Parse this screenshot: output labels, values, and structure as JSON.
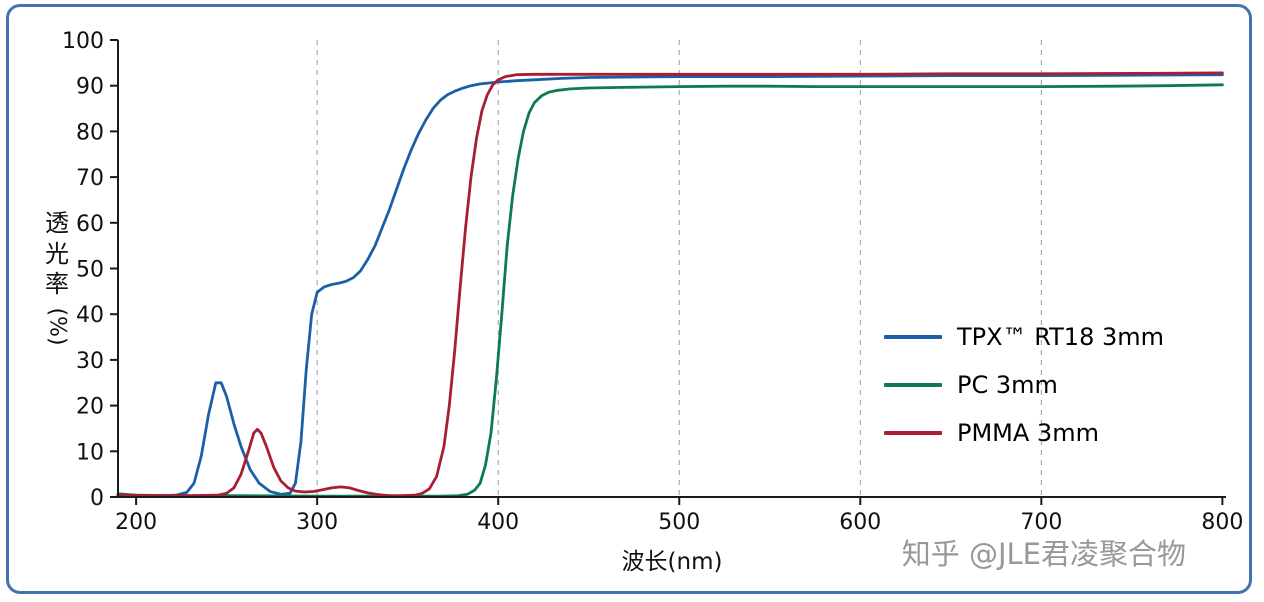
{
  "watermark": "知乎 @JLE君凌聚合物",
  "chart_data": {
    "type": "line",
    "title": "",
    "xlabel": "波长(nm)",
    "ylabel": "透光率",
    "ylabel_unit": "(%)",
    "xlim": [
      190,
      802
    ],
    "ylim": [
      0,
      100
    ],
    "xticks": [
      200,
      300,
      400,
      500,
      600,
      700,
      800
    ],
    "yticks": [
      0,
      10,
      20,
      30,
      40,
      50,
      60,
      70,
      80,
      90,
      100
    ],
    "grid": "vertical-dashed",
    "grid_lines_at": [
      300,
      400,
      500,
      600,
      700
    ],
    "legend_position": "right-middle",
    "series": [
      {
        "name": "TPX™ RT18 3mm",
        "color": "#1c5fa8",
        "points": [
          [
            190,
            0.6
          ],
          [
            200,
            0.4
          ],
          [
            208,
            0.3
          ],
          [
            215,
            0.3
          ],
          [
            222,
            0.4
          ],
          [
            228,
            1
          ],
          [
            232,
            3
          ],
          [
            236,
            9
          ],
          [
            240,
            18
          ],
          [
            244,
            25
          ],
          [
            247,
            25
          ],
          [
            250,
            22
          ],
          [
            254,
            16
          ],
          [
            258,
            11
          ],
          [
            263,
            6
          ],
          [
            268,
            3
          ],
          [
            274,
            1.2
          ],
          [
            280,
            0.6
          ],
          [
            285,
            0.8
          ],
          [
            288,
            3
          ],
          [
            291,
            12
          ],
          [
            294,
            28
          ],
          [
            297,
            40
          ],
          [
            300,
            44.8
          ],
          [
            304,
            46
          ],
          [
            308,
            46.5
          ],
          [
            312,
            46.8
          ],
          [
            316,
            47.2
          ],
          [
            320,
            48
          ],
          [
            324,
            49.5
          ],
          [
            328,
            52
          ],
          [
            332,
            55
          ],
          [
            336,
            59
          ],
          [
            340,
            63
          ],
          [
            344,
            67.5
          ],
          [
            348,
            72
          ],
          [
            352,
            76
          ],
          [
            356,
            79.5
          ],
          [
            360,
            82.5
          ],
          [
            364,
            85
          ],
          [
            368,
            86.8
          ],
          [
            372,
            88
          ],
          [
            376,
            88.8
          ],
          [
            380,
            89.4
          ],
          [
            385,
            90
          ],
          [
            390,
            90.4
          ],
          [
            395,
            90.6
          ],
          [
            400,
            90.8
          ],
          [
            410,
            91.1
          ],
          [
            420,
            91.3
          ],
          [
            435,
            91.6
          ],
          [
            450,
            91.8
          ],
          [
            475,
            91.9
          ],
          [
            500,
            92
          ],
          [
            550,
            92
          ],
          [
            600,
            92.1
          ],
          [
            650,
            92.2
          ],
          [
            700,
            92.2
          ],
          [
            750,
            92.3
          ],
          [
            800,
            92.4
          ]
        ]
      },
      {
        "name": "PC 3mm",
        "color": "#0e7a4e",
        "points": [
          [
            190,
            0.7
          ],
          [
            200,
            0.4
          ],
          [
            220,
            0.3
          ],
          [
            250,
            0.3
          ],
          [
            300,
            0.2
          ],
          [
            340,
            0.2
          ],
          [
            360,
            0.2
          ],
          [
            370,
            0.2
          ],
          [
            378,
            0.3
          ],
          [
            383,
            0.6
          ],
          [
            387,
            1.5
          ],
          [
            390,
            3
          ],
          [
            393,
            7
          ],
          [
            396,
            14
          ],
          [
            399,
            26
          ],
          [
            402,
            40
          ],
          [
            405,
            55
          ],
          [
            408,
            66
          ],
          [
            411,
            74
          ],
          [
            414,
            80
          ],
          [
            417,
            84
          ],
          [
            420,
            86.3
          ],
          [
            424,
            87.8
          ],
          [
            428,
            88.6
          ],
          [
            433,
            89
          ],
          [
            440,
            89.3
          ],
          [
            450,
            89.5
          ],
          [
            465,
            89.6
          ],
          [
            480,
            89.7
          ],
          [
            500,
            89.8
          ],
          [
            525,
            89.9
          ],
          [
            550,
            89.9
          ],
          [
            575,
            89.8
          ],
          [
            600,
            89.8
          ],
          [
            640,
            89.8
          ],
          [
            680,
            89.8
          ],
          [
            700,
            89.8
          ],
          [
            740,
            89.9
          ],
          [
            770,
            90
          ],
          [
            800,
            90.2
          ]
        ]
      },
      {
        "name": "PMMA 3mm",
        "color": "#a81e33",
        "points": [
          [
            190,
            0.4
          ],
          [
            210,
            0.3
          ],
          [
            230,
            0.3
          ],
          [
            245,
            0.4
          ],
          [
            250,
            0.8
          ],
          [
            254,
            2
          ],
          [
            258,
            5
          ],
          [
            262,
            10
          ],
          [
            265,
            14
          ],
          [
            267,
            14.8
          ],
          [
            269,
            14
          ],
          [
            272,
            11
          ],
          [
            276,
            6.5
          ],
          [
            280,
            3.5
          ],
          [
            284,
            2
          ],
          [
            288,
            1.3
          ],
          [
            293,
            1.1
          ],
          [
            298,
            1.2
          ],
          [
            303,
            1.6
          ],
          [
            308,
            2
          ],
          [
            313,
            2.2
          ],
          [
            318,
            2
          ],
          [
            323,
            1.4
          ],
          [
            328,
            0.9
          ],
          [
            334,
            0.5
          ],
          [
            340,
            0.3
          ],
          [
            347,
            0.3
          ],
          [
            354,
            0.4
          ],
          [
            358,
            0.8
          ],
          [
            362,
            1.8
          ],
          [
            366,
            4.5
          ],
          [
            370,
            11
          ],
          [
            373,
            20
          ],
          [
            376,
            32
          ],
          [
            379,
            46
          ],
          [
            382,
            59
          ],
          [
            385,
            70
          ],
          [
            388,
            78.5
          ],
          [
            391,
            84.5
          ],
          [
            394,
            88
          ],
          [
            397,
            90.2
          ],
          [
            400,
            91.3
          ],
          [
            404,
            92
          ],
          [
            410,
            92.4
          ],
          [
            420,
            92.5
          ],
          [
            440,
            92.5
          ],
          [
            470,
            92.5
          ],
          [
            500,
            92.5
          ],
          [
            550,
            92.5
          ],
          [
            600,
            92.5
          ],
          [
            650,
            92.6
          ],
          [
            700,
            92.6
          ],
          [
            750,
            92.7
          ],
          [
            800,
            92.8
          ]
        ]
      }
    ]
  }
}
